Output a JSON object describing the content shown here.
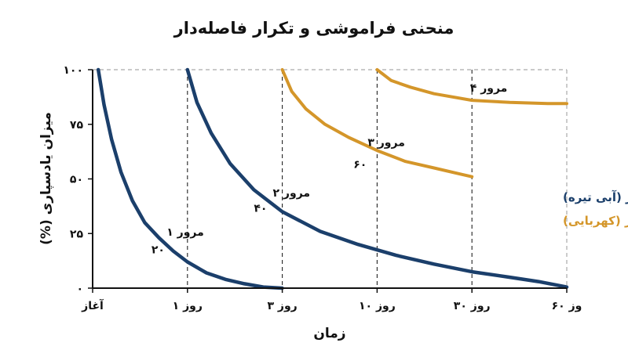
{
  "chart_data": {
    "type": "line",
    "title": "منحنی فراموشی و تکرار فاصله‌دار",
    "xlabel": "زمان",
    "ylabel": "میزان یادسپاری (%)",
    "ylim": [
      0,
      100
    ],
    "y_ticks": [
      "۰",
      "۲۵",
      "۵۰",
      "۷۵",
      "۱۰۰"
    ],
    "y_tick_values": [
      0,
      25,
      50,
      75,
      100
    ],
    "x_ticks": [
      {
        "label": "آغاز",
        "value": 0
      },
      {
        "label": "روز ۱",
        "value": 1
      },
      {
        "label": "روز ۳",
        "value": 2
      },
      {
        "label": "روز ۱۰",
        "value": 3
      },
      {
        "label": "روز ۳۰",
        "value": 4
      },
      {
        "label": "وز ۶۰",
        "value": 5
      }
    ],
    "grid": "dashed vertical lines at each review",
    "colors": {
      "blue": "#1b3f6b",
      "amber": "#d4962a",
      "axis": "#111111",
      "grid": "#aaaaaa"
    },
    "series": [
      {
        "color": "blue",
        "points": [
          [
            0.06,
            100
          ],
          [
            0.12,
            84
          ],
          [
            0.2,
            68
          ],
          [
            0.3,
            53
          ],
          [
            0.42,
            40
          ],
          [
            0.55,
            30
          ],
          [
            0.7,
            23
          ],
          [
            0.85,
            17
          ],
          [
            1.0,
            12
          ],
          [
            1.2,
            7
          ],
          [
            1.4,
            4
          ],
          [
            1.6,
            2
          ],
          [
            1.8,
            0.5
          ],
          [
            2.0,
            0
          ]
        ]
      },
      {
        "color": "blue",
        "points": [
          [
            1.0,
            100
          ],
          [
            1.1,
            85
          ],
          [
            1.25,
            71
          ],
          [
            1.45,
            57
          ],
          [
            1.7,
            45
          ],
          [
            2.0,
            35
          ],
          [
            2.4,
            26
          ],
          [
            2.8,
            20
          ],
          [
            3.2,
            15
          ],
          [
            3.6,
            11
          ],
          [
            4.0,
            7.5
          ],
          [
            4.4,
            5
          ],
          [
            4.7,
            3
          ],
          [
            5.0,
            0.5
          ]
        ]
      },
      {
        "color": "amber",
        "points": [
          [
            2.0,
            100
          ],
          [
            2.1,
            90
          ],
          [
            2.25,
            82
          ],
          [
            2.45,
            75
          ],
          [
            2.7,
            69
          ],
          [
            3.0,
            63
          ],
          [
            3.3,
            58
          ],
          [
            3.6,
            55
          ],
          [
            3.9,
            52
          ],
          [
            4.0,
            51
          ]
        ]
      },
      {
        "color": "amber",
        "points": [
          [
            3.0,
            100
          ],
          [
            3.15,
            95
          ],
          [
            3.35,
            92
          ],
          [
            3.6,
            89
          ],
          [
            4.0,
            86
          ],
          [
            4.4,
            85
          ],
          [
            4.8,
            84.5
          ],
          [
            5.0,
            84.5
          ]
        ]
      }
    ],
    "annotations": [
      {
        "text": "مرور ۱",
        "x": 0.78,
        "y": 24
      },
      {
        "text": "۲۰",
        "x": 0.62,
        "y": 16
      },
      {
        "text": "مرور ۲",
        "x": 1.9,
        "y": 42
      },
      {
        "text": "۴۰",
        "x": 1.7,
        "y": 35
      },
      {
        "text": "مرور ۳",
        "x": 2.9,
        "y": 65
      },
      {
        "text": "۶۰",
        "x": 2.75,
        "y": 55
      },
      {
        "text": "مرور ۴",
        "x": 3.98,
        "y": 90
      }
    ],
    "legend": {
      "placement": "right",
      "items": [
        {
          "text": "بدون تکرار (آبی تیره)",
          "color": "blue"
        },
        {
          "text": "با تکرار فاصله‌دار (کهربایی)",
          "color": "amber"
        }
      ]
    }
  }
}
